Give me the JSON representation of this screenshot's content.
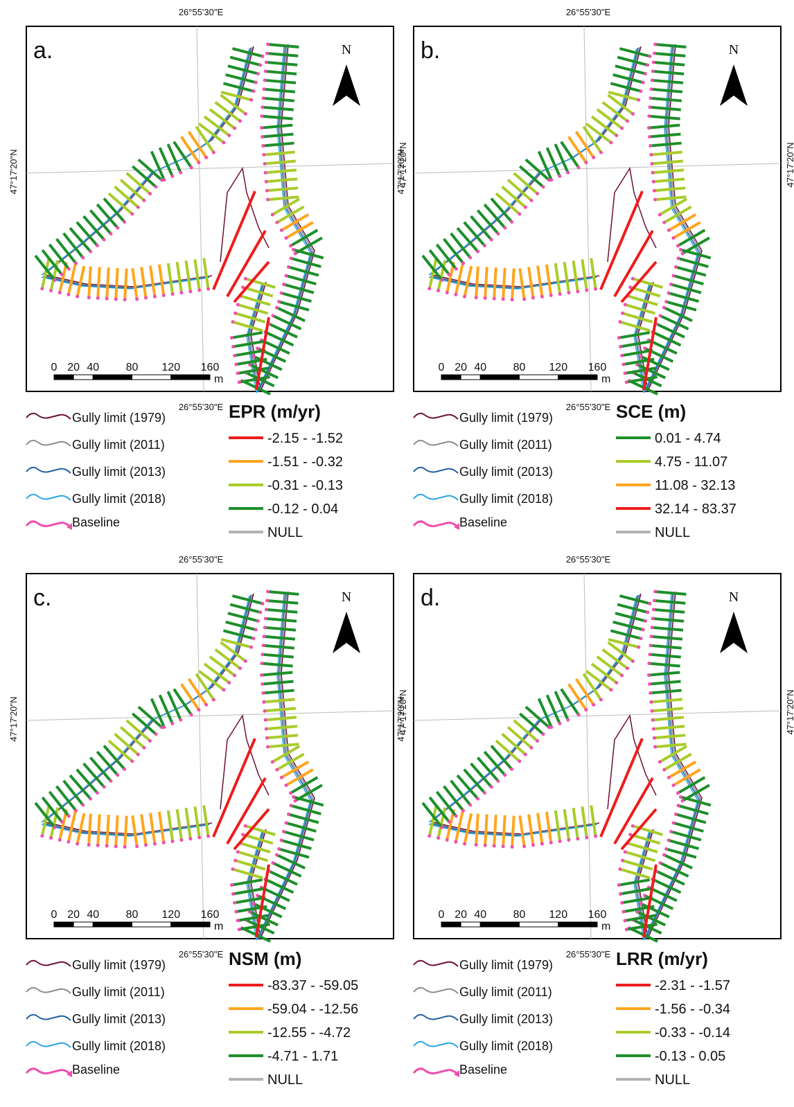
{
  "shared": {
    "lon_label": "26°55'30\"E",
    "lat_label": "47°17'20\"N",
    "north": "N",
    "scale_ticks": [
      0,
      20,
      40,
      80,
      120,
      160
    ],
    "scale_unit": "m",
    "limits": [
      {
        "name": "Gully limit (1979)",
        "color": "#6b0f3a"
      },
      {
        "name": "Gully limit (2011)",
        "color": "#8c8c8c"
      },
      {
        "name": "Gully limit (2013)",
        "color": "#1f5fa0"
      },
      {
        "name": "Gully limit (2018)",
        "color": "#29a3e6"
      }
    ],
    "baseline": {
      "name": "Baseline",
      "color": "#f04fb0"
    }
  },
  "panels": [
    {
      "label": "a.",
      "metric": "EPR (m/yr)",
      "classes": [
        {
          "range": "-2.15 - -1.52",
          "color": "#ee1c1c"
        },
        {
          "range": "-1.51 - -0.32",
          "color": "#ffa51e"
        },
        {
          "range": "-0.31 - -0.13",
          "color": "#a8cc2a"
        },
        {
          "range": "-0.12 - 0.04",
          "color": "#1d8f2a"
        }
      ],
      "null": {
        "name": "NULL",
        "color": "#b3b3b3"
      }
    },
    {
      "label": "b.",
      "metric": "SCE (m)",
      "classes": [
        {
          "range": "0.01 - 4.74",
          "color": "#1d8f2a"
        },
        {
          "range": "4.75 - 11.07",
          "color": "#a8cc2a"
        },
        {
          "range": "11.08 - 32.13",
          "color": "#ffa51e"
        },
        {
          "range": "32.14 - 83.37",
          "color": "#ee1c1c"
        }
      ],
      "null": {
        "name": "NULL",
        "color": "#b3b3b3"
      }
    },
    {
      "label": "c.",
      "metric": "NSM (m)",
      "classes": [
        {
          "range": "-83.37 - -59.05",
          "color": "#ee1c1c"
        },
        {
          "range": "-59.04 - -12.56",
          "color": "#ffa51e"
        },
        {
          "range": "-12.55 - -4.72",
          "color": "#a8cc2a"
        },
        {
          "range": "-4.71 - 1.71",
          "color": "#1d8f2a"
        }
      ],
      "null": {
        "name": "NULL",
        "color": "#b3b3b3"
      }
    },
    {
      "label": "d.",
      "metric": "LRR (m/yr)",
      "classes": [
        {
          "range": "-2.31 - -1.57",
          "color": "#ee1c1c"
        },
        {
          "range": "-1.56 - -0.34",
          "color": "#ffa51e"
        },
        {
          "range": "-0.33 - -0.14",
          "color": "#a8cc2a"
        },
        {
          "range": "-0.13 - 0.05",
          "color": "#1d8f2a"
        }
      ],
      "null": {
        "name": "NULL",
        "color": "#b3b3b3"
      }
    }
  ]
}
